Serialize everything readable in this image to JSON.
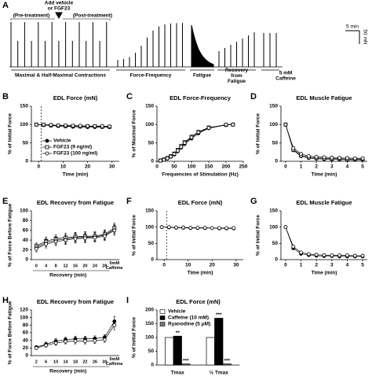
{
  "panel_a": {
    "label": "A",
    "event_lines": [
      "Add vehicle",
      "or FGF23"
    ],
    "pre": "(Pre-treatment)",
    "post": "(Post-treatment)",
    "scale_time": "5 min",
    "scale_force": "50 mN",
    "phases": [
      "Maximal & Half-Maximal Contractions",
      "Force-Frequency",
      "Fatigue",
      "Recovery from Fatigue",
      "5 mM Caffeine"
    ]
  },
  "chart_data": [
    {
      "type": "line",
      "label": "B",
      "title": "EDL Force (mN)",
      "ylabel": "% of Initial Force",
      "xlabel": "Time (min)",
      "x": [
        -1,
        2,
        5,
        8,
        11,
        14,
        17,
        20,
        23,
        26,
        29
      ],
      "xlim": [
        -3,
        33
      ],
      "xticks": [
        0,
        10,
        20,
        30
      ],
      "ylim": [
        0,
        150
      ],
      "yticks": [
        0,
        50,
        100,
        150
      ],
      "event_x": 1,
      "legend": "lower-center",
      "series": [
        {
          "name": "Vehicle",
          "color": "#000000",
          "marker": "filled-circle",
          "values": [
            100,
            99,
            97,
            96,
            95,
            94,
            94,
            93,
            93,
            93,
            93
          ]
        },
        {
          "name": "FGF23 (9 ng/ml)",
          "color": "#000000",
          "marker": "open-square",
          "values": [
            100,
            99,
            98,
            97,
            96,
            96,
            95,
            95,
            95,
            94,
            94
          ]
        },
        {
          "name": "FGF23 (100 ng/ml)",
          "color": "#000000",
          "marker": "open-circle",
          "values": [
            100,
            100,
            99,
            98,
            98,
            97,
            97,
            96,
            96,
            96,
            95
          ]
        }
      ]
    },
    {
      "type": "line",
      "label": "C",
      "title": "EDL Force-Frequency",
      "ylabel": "% of Maximal Force",
      "xlabel": "Frequencies of Stimulation (Hz)",
      "x": [
        10,
        20,
        30,
        40,
        50,
        60,
        70,
        80,
        100,
        120,
        150,
        200,
        220
      ],
      "xlim": [
        0,
        250
      ],
      "xticks": [
        0,
        50,
        100,
        150,
        200,
        250
      ],
      "ylim": [
        0,
        150
      ],
      "yticks": [
        0,
        50,
        100,
        150
      ],
      "series": [
        {
          "color": "#000000",
          "marker": "filled-circle",
          "values": [
            2,
            4,
            7,
            12,
            18,
            27,
            37,
            47,
            62,
            76,
            90,
            99,
            100
          ]
        },
        {
          "color": "#000000",
          "marker": "open-square",
          "values": [
            2,
            5,
            9,
            14,
            21,
            31,
            42,
            52,
            67,
            80,
            92,
            99,
            100
          ]
        },
        {
          "color": "#000000",
          "marker": "open-circle",
          "values": [
            2,
            4,
            8,
            13,
            20,
            29,
            39,
            50,
            65,
            79,
            91,
            100,
            100
          ]
        }
      ]
    },
    {
      "type": "line",
      "label": "D",
      "title": "EDL Muscle Fatigue",
      "ylabel": "% of Initial Force",
      "xlabel": "Time (min)",
      "x": [
        0,
        0.5,
        1,
        1.5,
        2,
        2.5,
        3,
        3.5,
        4,
        4.5,
        5
      ],
      "xlim": [
        -0.3,
        5.3
      ],
      "xticks": [
        0,
        1,
        2,
        3,
        4,
        5
      ],
      "ylim": [
        0,
        150
      ],
      "yticks": [
        0,
        50,
        100,
        150
      ],
      "series": [
        {
          "color": "#000000",
          "marker": "filled-circle",
          "values": [
            100,
            30,
            14,
            9,
            7,
            6,
            5,
            5,
            4,
            4,
            4
          ]
        },
        {
          "color": "#000000",
          "marker": "open-square",
          "values": [
            100,
            32,
            16,
            11,
            9,
            8,
            7,
            7,
            6,
            6,
            6
          ]
        },
        {
          "color": "#000000",
          "marker": "open-circle",
          "values": [
            100,
            36,
            20,
            14,
            12,
            11,
            10,
            9,
            9,
            8,
            8
          ]
        }
      ]
    },
    {
      "type": "line",
      "label": "E",
      "title": "EDL Recovery from Fatigue",
      "ylabel": "% of Force Before Fatigue",
      "xlabel": "Recovery (min)",
      "categories": [
        "0",
        "4",
        "8",
        "12",
        "16",
        "20",
        "24",
        "28",
        "5mM Caffeine"
      ],
      "ylim": [
        0,
        100
      ],
      "yticks": [
        0,
        20,
        40,
        60,
        80,
        100
      ],
      "series": [
        {
          "color": "#000000",
          "marker": "filled-circle",
          "values": [
            25,
            35,
            40,
            42,
            45,
            46,
            47,
            50,
            62
          ],
          "errors": [
            6,
            8,
            8,
            9,
            9,
            9,
            9,
            9,
            10
          ]
        },
        {
          "color": "#000000",
          "marker": "open-square",
          "values": [
            28,
            38,
            43,
            45,
            47,
            48,
            48,
            52,
            65
          ],
          "errors": [
            6,
            8,
            8,
            9,
            9,
            9,
            9,
            9,
            10
          ]
        },
        {
          "color": "#000000",
          "marker": "open-circle",
          "values": [
            22,
            32,
            37,
            40,
            43,
            44,
            45,
            48,
            60
          ],
          "errors": [
            6,
            8,
            8,
            9,
            9,
            9,
            9,
            9,
            10
          ]
        }
      ]
    },
    {
      "type": "line",
      "label": "F",
      "title": "EDL Force (mN)",
      "ylabel": "% of Initial Force",
      "xlabel": "Time (min)",
      "x": [
        -1,
        2,
        5,
        8,
        11,
        14,
        17,
        20,
        23,
        26,
        29
      ],
      "xlim": [
        -3,
        33
      ],
      "xticks": [
        0,
        10,
        20,
        30
      ],
      "ylim": [
        0,
        150
      ],
      "yticks": [
        0,
        50,
        100,
        150
      ],
      "event_x": 1,
      "series": [
        {
          "color": "#000000",
          "marker": "filled-circle",
          "values": [
            100,
            99,
            98,
            98,
            97,
            97,
            97,
            97,
            96,
            96,
            96
          ]
        },
        {
          "color": "#000000",
          "marker": "open-circle",
          "values": [
            100,
            100,
            99,
            99,
            98,
            98,
            98,
            97,
            97,
            97,
            97
          ]
        }
      ]
    },
    {
      "type": "line",
      "label": "G",
      "title": "EDL Muscle Fatigue",
      "ylabel": "% of Initial Force",
      "xlabel": "Time (min)",
      "x": [
        0,
        0.5,
        1,
        1.5,
        2,
        2.5,
        3,
        3.5,
        4,
        4.5,
        5
      ],
      "xlim": [
        -0.3,
        5.3
      ],
      "xticks": [
        0,
        1,
        2,
        3,
        4,
        5
      ],
      "ylim": [
        0,
        150
      ],
      "yticks": [
        0,
        50,
        100,
        150
      ],
      "series": [
        {
          "color": "#000000",
          "marker": "filled-circle",
          "values": [
            100,
            35,
            18,
            14,
            12,
            11,
            11,
            10,
            10,
            10,
            10
          ]
        },
        {
          "color": "#000000",
          "marker": "open-circle",
          "values": [
            100,
            40,
            22,
            17,
            15,
            14,
            13,
            13,
            13,
            12,
            12
          ]
        }
      ]
    },
    {
      "type": "line",
      "label": "H",
      "title": "EDL Recovery from Fatigue",
      "ylabel": "% of Force Before Fatigue",
      "xlabel": "Recovery (min)",
      "categories": [
        "2",
        "6",
        "10",
        "14",
        "18",
        "22",
        "26",
        "30",
        "5mM Caffeine"
      ],
      "ylim": [
        0,
        120
      ],
      "yticks": [
        0,
        20,
        40,
        60,
        80,
        100,
        120
      ],
      "series": [
        {
          "color": "#000000",
          "marker": "filled-circle",
          "values": [
            22,
            30,
            38,
            42,
            44,
            44,
            45,
            48,
            90
          ],
          "errors": [
            4,
            5,
            6,
            6,
            7,
            7,
            7,
            7,
            12
          ]
        },
        {
          "color": "#000000",
          "marker": "open-circle",
          "values": [
            20,
            27,
            33,
            37,
            38,
            38,
            39,
            42,
            80
          ],
          "errors": [
            4,
            5,
            6,
            6,
            7,
            7,
            7,
            7,
            12
          ]
        }
      ]
    },
    {
      "type": "bar",
      "label": "I",
      "title": "EDL Force (mN)",
      "ylabel": "% of Initial Force",
      "categories": [
        "Tmax",
        "½ Tmax"
      ],
      "ylim": [
        0,
        200
      ],
      "yticks": [
        0,
        50,
        100,
        150,
        200
      ],
      "legend": "upper-left",
      "series": [
        {
          "name": "Vehicle",
          "color": "#ffffff",
          "values": [
            100,
            100
          ]
        },
        {
          "name": "Caffeine (10 mM)",
          "color": "#000000",
          "values": [
            105,
            170
          ],
          "stars": [
            "**",
            "***"
          ]
        },
        {
          "name": "Ryanodine (5 μM)",
          "color": "#777777",
          "values": [
            4,
            4
          ],
          "stars": [
            "***",
            "***"
          ]
        }
      ]
    }
  ]
}
